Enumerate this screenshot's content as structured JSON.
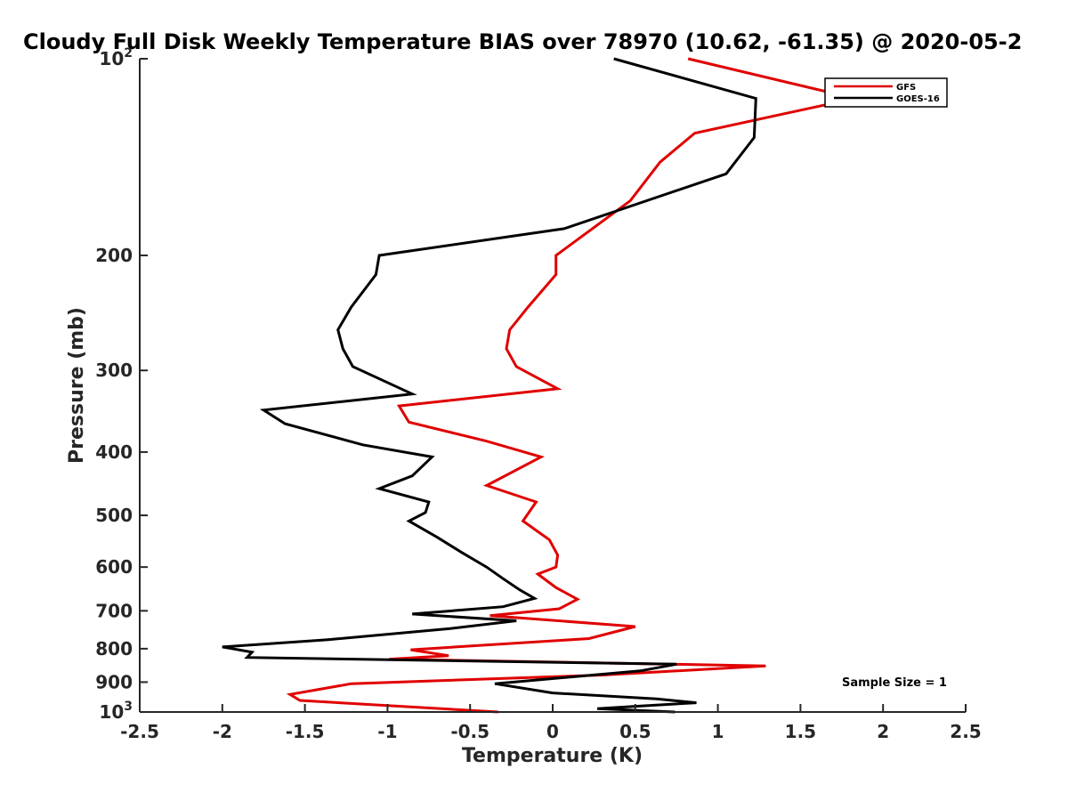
{
  "chart_data": {
    "type": "line",
    "title": "Cloudy Full Disk Weekly Temperature BIAS over 78970 (10.62, -61.35) @ 2020-05-2",
    "xlabel": "Temperature (K)",
    "ylabel": "Pressure (mb)",
    "xlim": [
      -2.5,
      2.5
    ],
    "ylim": [
      100,
      1000
    ],
    "y_scale": "log",
    "y_reversed": true,
    "x_ticks": [
      "-2.5",
      "-2",
      "-1.5",
      "-1",
      "-0.5",
      "0",
      "0.5",
      "1",
      "1.5",
      "2",
      "2.5"
    ],
    "y_ticks": [
      {
        "value": 100,
        "base": "10",
        "exp": "2"
      },
      {
        "value": 200,
        "label": "200"
      },
      {
        "value": 300,
        "label": "300"
      },
      {
        "value": 400,
        "label": "400"
      },
      {
        "value": 500,
        "label": "500"
      },
      {
        "value": 600,
        "label": "600"
      },
      {
        "value": 700,
        "label": "700"
      },
      {
        "value": 800,
        "label": "800"
      },
      {
        "value": 900,
        "label": "900"
      },
      {
        "value": 1000,
        "base": "10",
        "exp": "3"
      }
    ],
    "grid": false,
    "legend_position": "top-right",
    "annotation": "Sample Size = 1",
    "series": [
      {
        "name": "GFS",
        "color": "#e00000",
        "points": [
          [
            0.82,
            100
          ],
          [
            1.83,
            115
          ],
          [
            0.86,
            130
          ],
          [
            0.65,
            144
          ],
          [
            0.47,
            165
          ],
          [
            0.02,
            200
          ],
          [
            0.02,
            214
          ],
          [
            -0.15,
            240
          ],
          [
            -0.26,
            260
          ],
          [
            -0.28,
            278
          ],
          [
            -0.22,
            296
          ],
          [
            0.03,
            320
          ],
          [
            -0.93,
            340
          ],
          [
            -0.87,
            360
          ],
          [
            -0.4,
            385
          ],
          [
            -0.07,
            407
          ],
          [
            -0.4,
            450
          ],
          [
            -0.1,
            477
          ],
          [
            -0.18,
            510
          ],
          [
            -0.02,
            545
          ],
          [
            0.03,
            575
          ],
          [
            0.02,
            600
          ],
          [
            -0.09,
            615
          ],
          [
            0.02,
            645
          ],
          [
            0.15,
            672
          ],
          [
            0.04,
            695
          ],
          [
            -0.38,
            712
          ],
          [
            0.5,
            740
          ],
          [
            0.22,
            772
          ],
          [
            -0.86,
            803
          ],
          [
            -0.63,
            820
          ],
          [
            -0.99,
            830
          ],
          [
            1.29,
            850
          ],
          [
            0.3,
            878
          ],
          [
            -1.22,
            905
          ],
          [
            -1.59,
            940
          ],
          [
            -1.53,
            960
          ],
          [
            -0.33,
            1000
          ]
        ]
      },
      {
        "name": "GOES-16",
        "color": "#000000",
        "points": [
          [
            0.37,
            100
          ],
          [
            1.23,
            115
          ],
          [
            1.22,
            132
          ],
          [
            1.05,
            150
          ],
          [
            0.07,
            182
          ],
          [
            -1.05,
            200
          ],
          [
            -1.07,
            214
          ],
          [
            -1.22,
            240
          ],
          [
            -1.3,
            260
          ],
          [
            -1.27,
            278
          ],
          [
            -1.21,
            296
          ],
          [
            -0.85,
            326
          ],
          [
            -1.75,
            345
          ],
          [
            -1.62,
            362
          ],
          [
            -1.15,
            390
          ],
          [
            -0.73,
            407
          ],
          [
            -0.85,
            435
          ],
          [
            -1.05,
            455
          ],
          [
            -0.75,
            477
          ],
          [
            -0.77,
            495
          ],
          [
            -0.87,
            510
          ],
          [
            -0.7,
            540
          ],
          [
            -0.55,
            570
          ],
          [
            -0.4,
            600
          ],
          [
            -0.3,
            625
          ],
          [
            -0.2,
            650
          ],
          [
            -0.11,
            670
          ],
          [
            -0.3,
            690
          ],
          [
            -0.85,
            708
          ],
          [
            -0.22,
            725
          ],
          [
            -0.62,
            745
          ],
          [
            -1.36,
            775
          ],
          [
            -2.0,
            795
          ],
          [
            -1.82,
            810
          ],
          [
            -1.85,
            825
          ],
          [
            0.75,
            845
          ],
          [
            0.53,
            865
          ],
          [
            -0.35,
            905
          ],
          [
            0.0,
            935
          ],
          [
            0.63,
            955
          ],
          [
            0.87,
            968
          ],
          [
            0.5,
            980
          ],
          [
            0.27,
            988
          ],
          [
            0.74,
            1000
          ]
        ]
      }
    ]
  }
}
